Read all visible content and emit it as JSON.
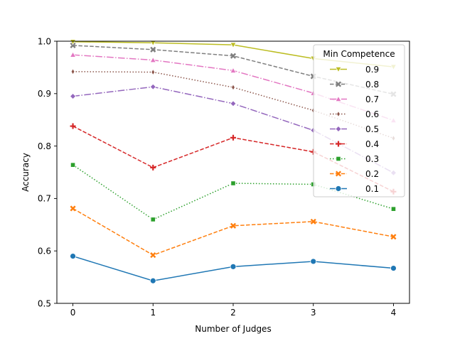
{
  "chart_data": {
    "type": "line",
    "title": "",
    "xlabel": "Number of Judges",
    "ylabel": "Accuracy",
    "x": [
      0,
      1,
      2,
      3,
      4
    ],
    "xticks": [
      "0",
      "1",
      "2",
      "3",
      "4"
    ],
    "xlim": [
      -0.2,
      4.2
    ],
    "yticks": [
      "0.5",
      "0.6",
      "0.7",
      "0.8",
      "0.9",
      "1.0"
    ],
    "ylim": [
      0.5,
      1.0
    ],
    "grid": false,
    "legend": {
      "title": "Min Competence",
      "placement": "top-right"
    },
    "series": [
      {
        "name": "0.9",
        "color": "#bcbd22",
        "marker": "triangle-down",
        "dash": "solid",
        "values": [
          0.999,
          0.997,
          0.993,
          0.967,
          0.951
        ]
      },
      {
        "name": "0.8",
        "color": "#7f7f7f",
        "marker": "x",
        "dash": "dashed",
        "values": [
          0.992,
          0.984,
          0.972,
          0.933,
          0.899
        ]
      },
      {
        "name": "0.7",
        "color": "#e377c2",
        "marker": "triangle-up",
        "dash": "dashdot",
        "values": [
          0.974,
          0.964,
          0.944,
          0.901,
          0.849
        ]
      },
      {
        "name": "0.6",
        "color": "#8c564b",
        "marker": "thin-diamond",
        "dash": "dotted",
        "values": [
          0.942,
          0.941,
          0.912,
          0.868,
          0.815
        ]
      },
      {
        "name": "0.5",
        "color": "#9467bd",
        "marker": "diamond",
        "dash": "dashdot",
        "values": [
          0.895,
          0.913,
          0.881,
          0.83,
          0.749
        ]
      },
      {
        "name": "0.4",
        "color": "#d62728",
        "marker": "plus",
        "dash": "dashed",
        "values": [
          0.838,
          0.759,
          0.816,
          0.789,
          0.713
        ]
      },
      {
        "name": "0.3",
        "color": "#2ca02c",
        "marker": "square",
        "dash": "dotted",
        "values": [
          0.764,
          0.66,
          0.729,
          0.727,
          0.68
        ]
      },
      {
        "name": "0.2",
        "color": "#ff7f0e",
        "marker": "x",
        "dash": "dashed",
        "values": [
          0.681,
          0.592,
          0.648,
          0.656,
          0.627
        ]
      },
      {
        "name": "0.1",
        "color": "#1f77b4",
        "marker": "circle",
        "dash": "solid",
        "values": [
          0.59,
          0.543,
          0.57,
          0.58,
          0.567
        ]
      }
    ]
  }
}
